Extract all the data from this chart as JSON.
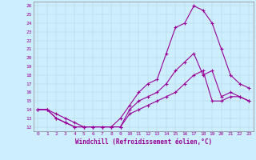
{
  "title": "",
  "xlabel": "Windchill (Refroidissement éolien,°C)",
  "ylabel": "",
  "bg_color": "#cceeff",
  "line_color": "#990099",
  "marker": "+",
  "xlim": [
    -0.5,
    23.5
  ],
  "ylim": [
    11.5,
    26.5
  ],
  "xticks": [
    0,
    1,
    2,
    3,
    4,
    5,
    6,
    7,
    8,
    9,
    10,
    11,
    12,
    13,
    14,
    15,
    16,
    17,
    18,
    19,
    20,
    21,
    22,
    23
  ],
  "yticks": [
    12,
    13,
    14,
    15,
    16,
    17,
    18,
    19,
    20,
    21,
    22,
    23,
    24,
    25,
    26
  ],
  "line1_x": [
    0,
    1,
    2,
    3,
    4,
    5,
    6,
    7,
    8,
    9,
    10,
    11,
    12,
    13,
    14,
    15,
    16,
    17,
    18,
    19,
    20,
    21,
    22,
    23
  ],
  "line1_y": [
    14.0,
    14.0,
    13.5,
    13.0,
    12.5,
    12.0,
    12.0,
    12.0,
    12.0,
    13.0,
    14.5,
    16.0,
    17.0,
    17.5,
    20.5,
    23.5,
    24.0,
    26.0,
    25.5,
    24.0,
    21.0,
    18.0,
    17.0,
    16.5
  ],
  "line2_x": [
    0,
    1,
    2,
    3,
    4,
    5,
    6,
    7,
    8,
    9,
    10,
    11,
    12,
    13,
    14,
    15,
    16,
    17,
    18,
    19,
    20,
    21,
    22,
    23
  ],
  "line2_y": [
    14.0,
    14.0,
    13.0,
    12.5,
    12.0,
    12.0,
    12.0,
    12.0,
    12.0,
    12.0,
    14.0,
    15.0,
    15.5,
    16.0,
    17.0,
    18.5,
    19.5,
    20.5,
    18.0,
    18.5,
    15.5,
    16.0,
    15.5,
    15.0
  ],
  "line3_x": [
    0,
    1,
    2,
    3,
    4,
    5,
    6,
    7,
    8,
    9,
    10,
    11,
    12,
    13,
    14,
    15,
    16,
    17,
    18,
    19,
    20,
    21,
    22,
    23
  ],
  "line3_y": [
    14.0,
    14.0,
    13.0,
    12.5,
    12.0,
    12.0,
    12.0,
    12.0,
    12.0,
    12.0,
    13.5,
    14.0,
    14.5,
    15.0,
    15.5,
    16.0,
    17.0,
    18.0,
    18.5,
    15.0,
    15.0,
    15.5,
    15.5,
    15.0
  ],
  "xlabel_fontsize": 5.5,
  "tick_fontsize": 4.5,
  "marker_size": 2.5,
  "line_width": 0.8,
  "grid_color": "#aacccc",
  "grid_alpha": 0.8,
  "grid_lw": 0.3
}
